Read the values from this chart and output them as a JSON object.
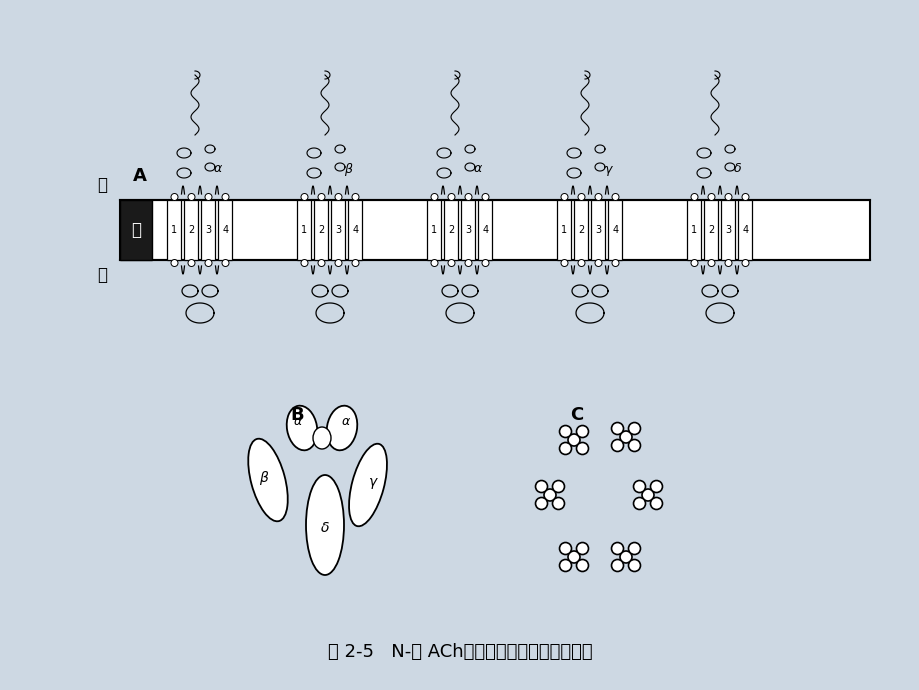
{
  "title": "图 2-5   N-型 ACh门控通道的分子结构示意图",
  "bg_color": "#cdd8e3",
  "label_A": "A",
  "label_B": "B",
  "label_C": "C",
  "subunit_greek": [
    "α",
    "β",
    "α",
    "γ",
    "δ"
  ],
  "membrane_label_out": "外",
  "membrane_label_in": "内",
  "membrane_label_mo": "膜",
  "tm_numbers": [
    "1",
    "2",
    "3",
    "4"
  ]
}
